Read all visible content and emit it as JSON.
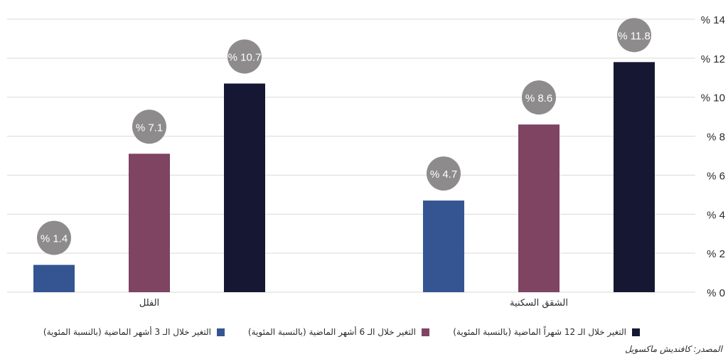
{
  "chart_data": {
    "type": "bar",
    "categories": [
      "الشقق السكنية",
      "الفلل"
    ],
    "series": [
      {
        "name": "التغير خلال الـ 12 شهراً الماضية (بالنسبة المئوية)",
        "values": [
          11.8,
          10.7
        ],
        "color": "#161733",
        "labels": [
          "% 11.8",
          "% 10.7"
        ]
      },
      {
        "name": "التغير خلال الـ 6 أشهر الماضية (بالنسبة المئوية)",
        "values": [
          8.6,
          7.1
        ],
        "color": "#7e4462",
        "labels": [
          "% 8.6",
          "% 7.1"
        ]
      },
      {
        "name": "التغير خلال الـ 3 أشهر الماضية (بالنسبة المئوية)",
        "values": [
          4.7,
          1.4
        ],
        "color": "#345592",
        "labels": [
          "% 4.7",
          "% 1.4"
        ]
      }
    ],
    "yticks": [
      "% 0",
      "% 2",
      "% 4",
      "% 6",
      "% 8",
      "% 10",
      "% 12",
      "% 14"
    ],
    "ylim": [
      0,
      14
    ],
    "grid": true,
    "legend_position": "bottom",
    "label_bubble_color": "#8d8b8c"
  },
  "source": "المصدر: كافنديش ماكسويل"
}
